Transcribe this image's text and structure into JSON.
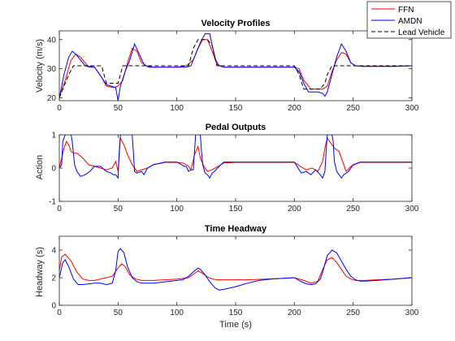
{
  "colors": {
    "FFN": "#ff0000",
    "AMDN": "#0000ff",
    "Lead Vehicle": "#000000"
  },
  "legend": {
    "placement": "top-right",
    "entries": [
      "FFN",
      "AMDN",
      "Lead Vehicle"
    ]
  },
  "chart_data": [
    {
      "type": "line",
      "title": "Velocity Profiles",
      "xlabel": "",
      "ylabel": "Velocity (m/s)",
      "xlim": [
        0,
        300
      ],
      "ylim": [
        19,
        43
      ],
      "xticks": [
        0,
        50,
        100,
        150,
        200,
        250,
        300
      ],
      "yticks": [
        20,
        30,
        40
      ],
      "grid": false,
      "series": [
        {
          "name": "FFN",
          "x": [
            0,
            5,
            10,
            14,
            18,
            24,
            30,
            36,
            40,
            46,
            50,
            54,
            58,
            62,
            66,
            70,
            74,
            80,
            90,
            100,
            108,
            114,
            118,
            122,
            126,
            130,
            134,
            140,
            150,
            160,
            175,
            190,
            200,
            204,
            208,
            214,
            218,
            224,
            228,
            232,
            236,
            240,
            244,
            248,
            252,
            258,
            270,
            285,
            300
          ],
          "y": [
            20,
            26,
            33,
            35,
            34,
            31,
            30.5,
            27,
            24,
            23.5,
            24,
            26,
            32,
            37,
            36,
            32,
            31,
            30.5,
            30.5,
            30.5,
            31,
            33,
            37,
            40,
            40,
            36,
            31.5,
            30.5,
            30.5,
            30.5,
            30.5,
            30.5,
            30.5,
            30,
            26,
            23,
            23,
            23,
            24,
            29,
            33,
            35.5,
            35,
            32,
            31,
            30.8,
            30.8,
            30.8,
            31
          ]
        },
        {
          "name": "AMDN",
          "x": [
            0,
            4,
            8,
            11,
            14,
            18,
            22,
            26,
            30,
            36,
            40,
            44,
            48,
            50,
            52,
            56,
            60,
            64,
            68,
            72,
            76,
            80,
            90,
            100,
            108,
            112,
            116,
            120,
            124,
            128,
            130,
            133,
            136,
            140,
            150,
            160,
            175,
            190,
            200,
            204,
            208,
            212,
            216,
            220,
            224,
            226,
            228,
            232,
            236,
            240,
            244,
            248,
            252,
            258,
            270,
            285,
            300
          ],
          "y": [
            20,
            28,
            34,
            36,
            35,
            33,
            31,
            30.5,
            30.5,
            27,
            24.5,
            24,
            23.5,
            19,
            24,
            29,
            33,
            38.5,
            35,
            31.5,
            30.5,
            30.5,
            30.5,
            30.5,
            30.5,
            31,
            35,
            39,
            42,
            42,
            38,
            33,
            31,
            30.5,
            30.5,
            30.5,
            30.5,
            30.5,
            30.5,
            29,
            25,
            22,
            22,
            22,
            21.5,
            20.5,
            22,
            28,
            34,
            38.5,
            36,
            32,
            31,
            30.8,
            30.8,
            30.8,
            31
          ]
        },
        {
          "name": "Lead Vehicle",
          "x": [
            0,
            4,
            8,
            12,
            16,
            20,
            26,
            32,
            36,
            40,
            50,
            54,
            58,
            60,
            70,
            80,
            90,
            100,
            105,
            110,
            114,
            118,
            122,
            126,
            130,
            134,
            140,
            150,
            200,
            204,
            208,
            214,
            218,
            222,
            226,
            228,
            232,
            236,
            240,
            300
          ],
          "y": [
            20,
            24,
            28,
            31,
            31,
            31,
            31,
            31,
            31,
            25,
            25,
            31,
            31,
            31,
            31,
            31,
            31,
            31,
            31,
            31,
            37,
            40,
            40,
            40,
            38,
            31,
            31,
            31,
            31,
            28,
            23,
            23,
            23,
            23,
            25,
            28,
            31,
            31,
            31,
            31
          ]
        }
      ]
    },
    {
      "type": "line",
      "title": "Pedal Outputs",
      "xlabel": "",
      "ylabel": "Action",
      "xlim": [
        0,
        300
      ],
      "ylim": [
        -1,
        1
      ],
      "xticks": [
        0,
        50,
        100,
        150,
        200,
        250,
        300
      ],
      "yticks": [
        -1,
        0,
        1
      ],
      "grid": false,
      "series": [
        {
          "name": "FFN",
          "x": [
            0,
            2,
            4,
            6,
            8,
            10,
            12,
            15,
            20,
            25,
            30,
            35,
            40,
            45,
            48,
            50,
            52,
            55,
            58,
            62,
            66,
            70,
            75,
            80,
            90,
            100,
            105,
            108,
            110,
            112,
            115,
            118,
            120,
            123,
            126,
            130,
            135,
            140,
            150,
            160,
            170,
            190,
            200,
            205,
            210,
            215,
            220,
            224,
            226,
            228,
            230,
            234,
            238,
            240,
            244,
            248,
            252,
            256,
            260,
            270,
            280,
            300
          ],
          "y": [
            0,
            0.3,
            0.6,
            0.8,
            0.7,
            0.5,
            0.45,
            0.45,
            0.3,
            0.1,
            0.05,
            0,
            -0.05,
            0,
            0.2,
            -0.1,
            0.9,
            0.7,
            0.4,
            0.1,
            -0.1,
            -0.05,
            0,
            0.1,
            0.17,
            0.17,
            0.15,
            0.1,
            0.05,
            -0.05,
            0.4,
            0.65,
            0.3,
            0.05,
            -0.1,
            -0.05,
            0.05,
            0.15,
            0.17,
            0.17,
            0.17,
            0.17,
            0.17,
            0.05,
            -0.05,
            0,
            -0.1,
            0.2,
            0.6,
            0.9,
            0.8,
            0.6,
            0.5,
            0.3,
            -0.1,
            0.05,
            0.12,
            0.17,
            0.17,
            0.17,
            0.17,
            0.17
          ]
        },
        {
          "name": "AMDN",
          "x": [
            0,
            2,
            3,
            4,
            5,
            6,
            8,
            10,
            11,
            13,
            15,
            18,
            22,
            26,
            30,
            35,
            40,
            44,
            46,
            48,
            50,
            51,
            52,
            53,
            56,
            60,
            62,
            63,
            64,
            66,
            70,
            72,
            75,
            80,
            90,
            100,
            104,
            106,
            108,
            110,
            112,
            114,
            115,
            116,
            117,
            118,
            120,
            121,
            122,
            124,
            126,
            128,
            130,
            132,
            136,
            140,
            150,
            170,
            190,
            200,
            204,
            206,
            210,
            214,
            218,
            222,
            224,
            226,
            227,
            228,
            229,
            230,
            232,
            233,
            234,
            236,
            238,
            240,
            242,
            246,
            250,
            256,
            260,
            270,
            300
          ],
          "y": [
            0,
            0.1,
            0.8,
            0.9,
            1,
            1,
            1,
            1,
            0.8,
            0.1,
            -0.1,
            -0.25,
            -0.2,
            -0.1,
            0.05,
            0.05,
            -0.1,
            -0.15,
            -0.2,
            -0.2,
            -0.3,
            0.5,
            1,
            1,
            1,
            1,
            1,
            0.5,
            -0.1,
            -0.15,
            -0.1,
            -0.2,
            0,
            0.1,
            0.18,
            0.18,
            0.1,
            0.05,
            0.05,
            -0.1,
            -0.05,
            -0.05,
            0.5,
            1,
            1,
            1,
            1,
            0.5,
            0.1,
            -0.15,
            -0.2,
            -0.3,
            -0.15,
            -0.1,
            0.05,
            0.18,
            0.18,
            0.18,
            0.18,
            0.18,
            -0.05,
            -0.15,
            -0.1,
            -0.2,
            -0.05,
            -0.2,
            -0.3,
            -0.1,
            0.5,
            1,
            1,
            1,
            1,
            0.8,
            0.2,
            -0.1,
            -0.2,
            -0.3,
            -0.2,
            -0.1,
            0.1,
            0.18,
            0.18,
            0.18,
            0.18
          ]
        }
      ]
    },
    {
      "type": "line",
      "title": "Time Headway",
      "xlabel": "Time (s)",
      "ylabel": "Headway (s)",
      "xlim": [
        0,
        300
      ],
      "ylim": [
        0,
        5
      ],
      "xticks": [
        0,
        50,
        100,
        150,
        200,
        250,
        300
      ],
      "yticks": [
        0,
        2,
        4
      ],
      "grid": false,
      "series": [
        {
          "name": "FFN",
          "x": [
            0,
            2,
            5,
            10,
            15,
            20,
            25,
            30,
            35,
            40,
            45,
            50,
            53,
            56,
            60,
            65,
            70,
            80,
            90,
            100,
            110,
            115,
            118,
            122,
            126,
            130,
            135,
            140,
            150,
            160,
            175,
            190,
            200,
            208,
            214,
            220,
            224,
            228,
            232,
            236,
            240,
            244,
            248,
            252,
            260,
            270,
            285,
            300
          ],
          "y": [
            2.5,
            3.5,
            3.7,
            3.2,
            2.4,
            1.9,
            1.8,
            1.8,
            1.9,
            2,
            2.1,
            2.7,
            3,
            2.8,
            2.2,
            1.9,
            1.8,
            1.8,
            1.85,
            1.9,
            2,
            2.3,
            2.5,
            2.3,
            2.05,
            1.9,
            1.85,
            1.85,
            1.85,
            1.85,
            1.9,
            1.95,
            2,
            1.8,
            1.6,
            1.75,
            2.6,
            3.3,
            3.45,
            3.1,
            2.6,
            2.1,
            1.9,
            1.8,
            1.8,
            1.85,
            1.9,
            2
          ]
        },
        {
          "name": "AMDN",
          "x": [
            0,
            3,
            5,
            8,
            12,
            16,
            20,
            30,
            35,
            40,
            45,
            48,
            50,
            52,
            55,
            58,
            62,
            66,
            70,
            80,
            90,
            100,
            105,
            110,
            115,
            118,
            120,
            124,
            128,
            132,
            136,
            140,
            150,
            160,
            170,
            180,
            190,
            200,
            205,
            210,
            214,
            218,
            222,
            224,
            226,
            228,
            232,
            236,
            240,
            244,
            248,
            252,
            256,
            260,
            270,
            285,
            300
          ],
          "y": [
            2,
            3.1,
            3.3,
            2.8,
            1.9,
            1.5,
            1.5,
            1.6,
            1.6,
            1.5,
            1.6,
            2.5,
            3.9,
            4.1,
            3.8,
            2.8,
            2,
            1.7,
            1.6,
            1.6,
            1.7,
            1.8,
            1.85,
            2.1,
            2.5,
            2.7,
            2.6,
            2.2,
            1.7,
            1.3,
            1.1,
            1.15,
            1.35,
            1.6,
            1.8,
            1.9,
            1.95,
            2,
            1.75,
            1.55,
            1.5,
            1.55,
            1.9,
            2.4,
            3,
            3.6,
            4,
            3.8,
            3.2,
            2.6,
            2.1,
            1.85,
            1.75,
            1.75,
            1.8,
            1.9,
            2
          ]
        }
      ]
    }
  ]
}
